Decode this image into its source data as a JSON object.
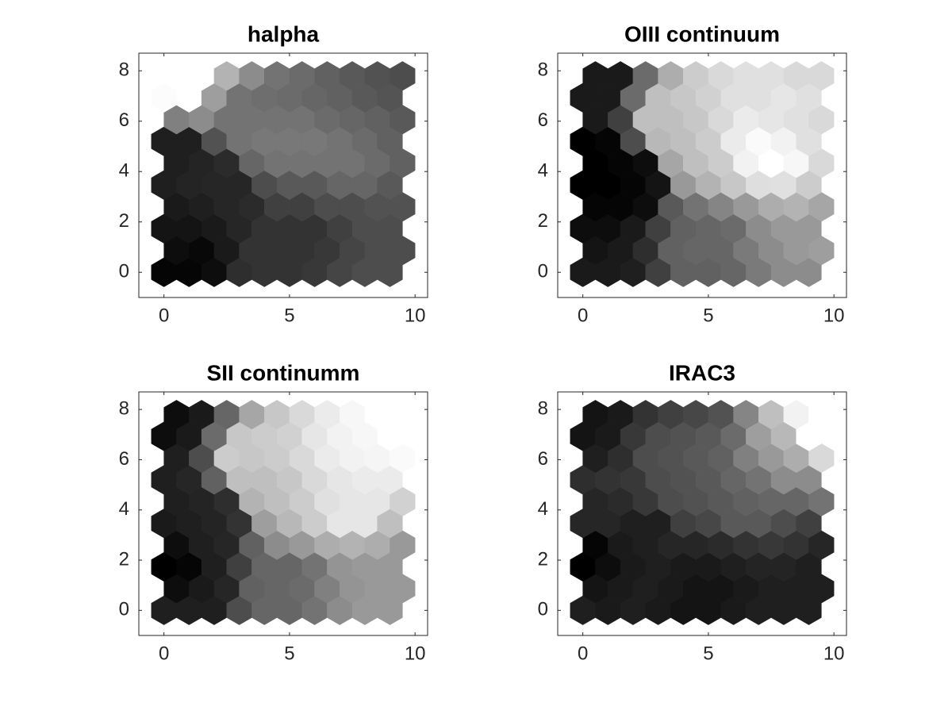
{
  "chart_data": [
    {
      "type": "hexgrid",
      "title": "halpha",
      "colormap": "gray",
      "xlim": [
        -1,
        10.5
      ],
      "ylim": [
        -1,
        8.7
      ],
      "xticks": [
        0,
        5,
        10
      ],
      "yticks": [
        0,
        2,
        4,
        6,
        8
      ],
      "rows": [
        [
          0.02,
          0.02,
          0.05,
          0.18,
          0.2,
          0.2,
          0.22,
          0.27,
          0.3,
          0.3
        ],
        [
          0.05,
          0.03,
          0.1,
          0.2,
          0.2,
          0.2,
          0.22,
          0.27,
          0.3,
          0.3
        ],
        [
          0.08,
          0.08,
          0.1,
          0.15,
          0.2,
          0.2,
          0.2,
          0.25,
          0.3,
          0.3
        ],
        [
          0.1,
          0.12,
          0.15,
          0.17,
          0.25,
          0.25,
          0.3,
          0.3,
          0.32,
          0.32
        ],
        [
          0.12,
          0.14,
          0.15,
          0.15,
          0.3,
          0.35,
          0.35,
          0.4,
          0.4,
          0.35
        ],
        [
          0.12,
          0.14,
          0.17,
          0.4,
          0.45,
          0.45,
          0.45,
          0.45,
          0.42,
          0.38
        ],
        [
          0.12,
          0.12,
          0.32,
          0.45,
          0.47,
          0.47,
          0.47,
          0.45,
          0.42,
          0.38
        ],
        [
          0.5,
          0.55,
          0.45,
          0.45,
          0.45,
          0.45,
          0.42,
          0.4,
          0.38,
          0.35
        ],
        [
          0.99,
          1.0,
          0.62,
          0.45,
          0.43,
          0.42,
          0.4,
          0.38,
          0.35,
          0.33
        ],
        [
          1.0,
          1.0,
          0.7,
          0.55,
          0.45,
          0.42,
          0.38,
          0.35,
          0.32,
          0.3
        ]
      ]
    },
    {
      "type": "hexgrid",
      "title": "OIII continuum",
      "colormap": "gray",
      "xlim": [
        -1,
        10.5
      ],
      "ylim": [
        -1,
        8.7
      ],
      "xticks": [
        0,
        5,
        10
      ],
      "yticks": [
        0,
        2,
        4,
        6,
        8
      ],
      "rows": [
        [
          0.1,
          0.1,
          0.12,
          0.25,
          0.38,
          0.38,
          0.4,
          0.48,
          0.55,
          0.55
        ],
        [
          0.08,
          0.1,
          0.18,
          0.38,
          0.4,
          0.4,
          0.48,
          0.55,
          0.6,
          0.62
        ],
        [
          0.05,
          0.05,
          0.1,
          0.25,
          0.38,
          0.4,
          0.42,
          0.55,
          0.6,
          0.6
        ],
        [
          0.02,
          0.02,
          0.05,
          0.35,
          0.45,
          0.52,
          0.6,
          0.68,
          0.7,
          0.65
        ],
        [
          0.0,
          0.0,
          0.02,
          0.08,
          0.6,
          0.7,
          0.78,
          0.87,
          0.88,
          0.8
        ],
        [
          0.0,
          0.02,
          0.05,
          0.65,
          0.75,
          0.8,
          0.95,
          1.0,
          0.97,
          0.85
        ],
        [
          0.0,
          0.02,
          0.3,
          0.72,
          0.75,
          0.8,
          0.92,
          0.98,
          0.95,
          0.88
        ],
        [
          0.1,
          0.25,
          0.75,
          0.75,
          0.78,
          0.85,
          0.92,
          0.9,
          0.88,
          0.85
        ],
        [
          0.1,
          0.1,
          0.42,
          0.75,
          0.78,
          0.82,
          0.88,
          0.88,
          0.9,
          0.88
        ],
        [
          0.1,
          0.1,
          0.42,
          0.68,
          0.8,
          0.85,
          0.88,
          0.88,
          0.85,
          0.85
        ]
      ]
    },
    {
      "type": "hexgrid",
      "title": "SII continumm",
      "colormap": "gray",
      "xlim": [
        -1,
        10.5
      ],
      "ylim": [
        -1,
        8.7
      ],
      "xticks": [
        0,
        5,
        10
      ],
      "yticks": [
        0,
        2,
        4,
        6,
        8
      ],
      "rows": [
        [
          0.12,
          0.12,
          0.12,
          0.3,
          0.4,
          0.4,
          0.45,
          0.55,
          0.6,
          0.6
        ],
        [
          0.05,
          0.1,
          0.15,
          0.38,
          0.4,
          0.42,
          0.5,
          0.58,
          0.6,
          0.6
        ],
        [
          0.0,
          0.02,
          0.12,
          0.25,
          0.4,
          0.4,
          0.45,
          0.58,
          0.6,
          0.6
        ],
        [
          0.05,
          0.12,
          0.15,
          0.38,
          0.55,
          0.6,
          0.68,
          0.7,
          0.68,
          0.6
        ],
        [
          0.1,
          0.12,
          0.14,
          0.2,
          0.62,
          0.72,
          0.8,
          0.9,
          0.9,
          0.75
        ],
        [
          0.12,
          0.14,
          0.18,
          0.7,
          0.75,
          0.8,
          0.88,
          0.9,
          0.9,
          0.82
        ],
        [
          0.12,
          0.15,
          0.38,
          0.75,
          0.75,
          0.78,
          0.85,
          0.9,
          0.92,
          0.92
        ],
        [
          0.12,
          0.3,
          0.8,
          0.78,
          0.8,
          0.85,
          0.92,
          0.95,
          0.96,
          0.98
        ],
        [
          0.05,
          0.1,
          0.42,
          0.78,
          0.8,
          0.82,
          0.9,
          0.95,
          0.97,
          1.0
        ],
        [
          0.05,
          0.1,
          0.4,
          0.65,
          0.78,
          0.85,
          0.92,
          0.97,
          1.0,
          1.0
        ]
      ]
    },
    {
      "type": "hexgrid",
      "title": "IRAC3",
      "colormap": "gray",
      "xlim": [
        -1,
        10.5
      ],
      "ylim": [
        -1,
        8.7
      ],
      "xticks": [
        0,
        5,
        10
      ],
      "yticks": [
        0,
        2,
        4,
        6,
        8
      ],
      "rows": [
        [
          0.12,
          0.1,
          0.12,
          0.1,
          0.08,
          0.08,
          0.1,
          0.12,
          0.12,
          0.12
        ],
        [
          0.08,
          0.1,
          0.12,
          0.1,
          0.08,
          0.08,
          0.1,
          0.12,
          0.12,
          0.12
        ],
        [
          0.0,
          0.05,
          0.1,
          0.12,
          0.1,
          0.1,
          0.12,
          0.14,
          0.14,
          0.12
        ],
        [
          0.02,
          0.1,
          0.12,
          0.15,
          0.15,
          0.17,
          0.2,
          0.22,
          0.2,
          0.15
        ],
        [
          0.15,
          0.15,
          0.12,
          0.12,
          0.25,
          0.28,
          0.35,
          0.35,
          0.3,
          0.25
        ],
        [
          0.15,
          0.17,
          0.22,
          0.3,
          0.32,
          0.35,
          0.38,
          0.4,
          0.4,
          0.45
        ],
        [
          0.18,
          0.2,
          0.22,
          0.3,
          0.32,
          0.35,
          0.4,
          0.45,
          0.55,
          0.55
        ],
        [
          0.12,
          0.18,
          0.3,
          0.32,
          0.35,
          0.38,
          0.5,
          0.6,
          0.68,
          0.85
        ],
        [
          0.08,
          0.1,
          0.22,
          0.3,
          0.32,
          0.35,
          0.42,
          0.62,
          0.72,
          1.0
        ],
        [
          0.08,
          0.1,
          0.2,
          0.25,
          0.28,
          0.32,
          0.52,
          0.75,
          0.95,
          1.0
        ]
      ]
    }
  ]
}
